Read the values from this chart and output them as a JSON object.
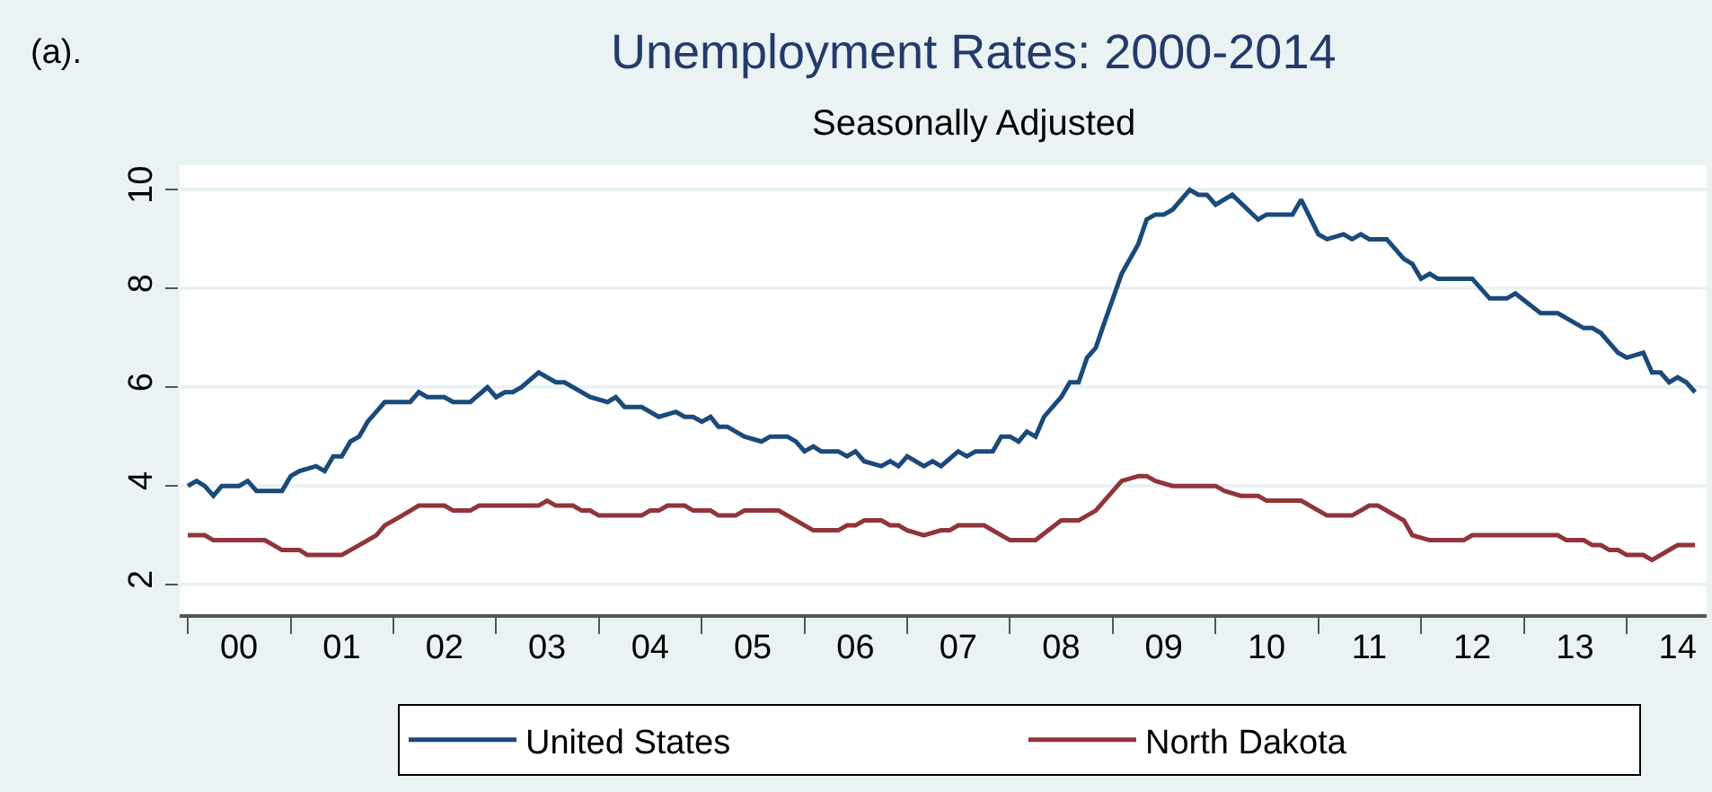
{
  "chart_data": {
    "type": "line",
    "title": "Unemployment Rates: 2000-2014",
    "subtitle": "Seasonally Adjusted",
    "annotations": [
      "(a)."
    ],
    "series": [
      {
        "name": "United States",
        "color": "#1a4a7a",
        "x": [
          "2000-01",
          "2000-02",
          "2000-03",
          "2000-04",
          "2000-05",
          "2000-07",
          "2000-08",
          "2000-09",
          "2000-12",
          "2001-01",
          "2001-02",
          "2001-04",
          "2001-05",
          "2001-06",
          "2001-07",
          "2001-08",
          "2001-09",
          "2001-10",
          "2001-12",
          "2002-03",
          "2002-04",
          "2002-05",
          "2002-07",
          "2002-08",
          "2002-10",
          "2002-12",
          "2003-01",
          "2003-02",
          "2003-03",
          "2003-04",
          "2003-06",
          "2003-08",
          "2003-09",
          "2003-12",
          "2004-02",
          "2004-03",
          "2004-04",
          "2004-06",
          "2004-08",
          "2004-10",
          "2004-11",
          "2004-12",
          "2005-01",
          "2005-02",
          "2005-03",
          "2005-04",
          "2005-06",
          "2005-08",
          "2005-09",
          "2005-11",
          "2005-12",
          "2006-01",
          "2006-02",
          "2006-03",
          "2006-05",
          "2006-06",
          "2006-07",
          "2006-08",
          "2006-10",
          "2006-11",
          "2006-12",
          "2007-01",
          "2007-03",
          "2007-04",
          "2007-05",
          "2007-07",
          "2007-08",
          "2007-09",
          "2007-11",
          "2007-12",
          "2008-01",
          "2008-02",
          "2008-03",
          "2008-04",
          "2008-05",
          "2008-07",
          "2008-08",
          "2008-09",
          "2008-10",
          "2008-11",
          "2008-12",
          "2009-02",
          "2009-04",
          "2009-05",
          "2009-06",
          "2009-07",
          "2009-08",
          "2009-10",
          "2009-11",
          "2009-12",
          "2010-01",
          "2010-03",
          "2010-06",
          "2010-07",
          "2010-10",
          "2010-11",
          "2011-01",
          "2011-02",
          "2011-04",
          "2011-05",
          "2011-06",
          "2011-07",
          "2011-09",
          "2011-11",
          "2011-12",
          "2012-01",
          "2012-02",
          "2012-03",
          "2012-07",
          "2012-09",
          "2012-11",
          "2012-12",
          "2013-03",
          "2013-05",
          "2013-08",
          "2013-09",
          "2013-10",
          "2013-12",
          "2014-01",
          "2014-03",
          "2014-04",
          "2014-05",
          "2014-06",
          "2014-07",
          "2014-08",
          "2014-09"
        ],
        "values": [
          4.0,
          4.1,
          4.0,
          3.8,
          4.0,
          4.0,
          4.1,
          3.9,
          3.9,
          4.2,
          4.3,
          4.4,
          4.3,
          4.6,
          4.6,
          4.9,
          5.0,
          5.3,
          5.7,
          5.7,
          5.9,
          5.8,
          5.8,
          5.7,
          5.7,
          6.0,
          5.8,
          5.9,
          5.9,
          6.0,
          6.3,
          6.1,
          6.1,
          5.8,
          5.7,
          5.8,
          5.6,
          5.6,
          5.4,
          5.5,
          5.4,
          5.4,
          5.3,
          5.4,
          5.2,
          5.2,
          5.0,
          4.9,
          5.0,
          5.0,
          4.9,
          4.7,
          4.8,
          4.7,
          4.7,
          4.6,
          4.7,
          4.5,
          4.4,
          4.5,
          4.4,
          4.6,
          4.4,
          4.5,
          4.4,
          4.7,
          4.6,
          4.7,
          4.7,
          5.0,
          5.0,
          4.9,
          5.1,
          5.0,
          5.4,
          5.8,
          6.1,
          6.1,
          6.6,
          6.8,
          7.3,
          8.3,
          8.9,
          9.4,
          9.5,
          9.5,
          9.6,
          10.0,
          9.9,
          9.9,
          9.7,
          9.9,
          9.4,
          9.5,
          9.5,
          9.8,
          9.1,
          9.0,
          9.1,
          9.0,
          9.1,
          9.0,
          9.0,
          8.6,
          8.5,
          8.2,
          8.3,
          8.2,
          8.2,
          7.8,
          7.8,
          7.9,
          7.5,
          7.5,
          7.2,
          7.2,
          7.1,
          6.7,
          6.6,
          6.7,
          6.3,
          6.3,
          6.1,
          6.2,
          6.1,
          5.9
        ]
      },
      {
        "name": "North Dakota",
        "color": "#90353b",
        "x": [
          "2000-01",
          "2000-03",
          "2000-04",
          "2000-10",
          "2000-12",
          "2001-02",
          "2001-03",
          "2001-07",
          "2001-09",
          "2001-11",
          "2001-12",
          "2002-02",
          "2002-04",
          "2002-07",
          "2002-08",
          "2002-10",
          "2002-11",
          "2003-06",
          "2003-07",
          "2003-08",
          "2003-10",
          "2003-11",
          "2003-12",
          "2004-01",
          "2004-06",
          "2004-07",
          "2004-08",
          "2004-09",
          "2004-11",
          "2004-12",
          "2005-02",
          "2005-03",
          "2005-05",
          "2005-06",
          "2005-10",
          "2006-02",
          "2006-05",
          "2006-06",
          "2006-07",
          "2006-08",
          "2006-10",
          "2006-11",
          "2006-12",
          "2007-01",
          "2007-03",
          "2007-05",
          "2007-06",
          "2007-07",
          "2007-10",
          "2008-01",
          "2008-04",
          "2008-07",
          "2008-09",
          "2008-11",
          "2009-02",
          "2009-04",
          "2009-05",
          "2009-06",
          "2009-08",
          "2010-01",
          "2010-02",
          "2010-04",
          "2010-06",
          "2010-07",
          "2010-11",
          "2011-02",
          "2011-05",
          "2011-07",
          "2011-08",
          "2011-11",
          "2011-12",
          "2012-02",
          "2012-06",
          "2012-07",
          "2013-05",
          "2013-06",
          "2013-08",
          "2013-09",
          "2013-10",
          "2013-11",
          "2013-12",
          "2014-01",
          "2014-03",
          "2014-04",
          "2014-07",
          "2014-09"
        ],
        "values": [
          3.0,
          3.0,
          2.9,
          2.9,
          2.7,
          2.7,
          2.6,
          2.6,
          2.8,
          3.0,
          3.2,
          3.4,
          3.6,
          3.6,
          3.5,
          3.5,
          3.6,
          3.6,
          3.7,
          3.6,
          3.6,
          3.5,
          3.5,
          3.4,
          3.4,
          3.5,
          3.5,
          3.6,
          3.6,
          3.5,
          3.5,
          3.4,
          3.4,
          3.5,
          3.5,
          3.1,
          3.1,
          3.2,
          3.2,
          3.3,
          3.3,
          3.2,
          3.2,
          3.1,
          3.0,
          3.1,
          3.1,
          3.2,
          3.2,
          2.9,
          2.9,
          3.3,
          3.3,
          3.5,
          4.1,
          4.2,
          4.2,
          4.1,
          4.0,
          4.0,
          3.9,
          3.8,
          3.8,
          3.7,
          3.7,
          3.4,
          3.4,
          3.6,
          3.6,
          3.3,
          3.0,
          2.9,
          2.9,
          3.0,
          3.0,
          2.9,
          2.9,
          2.8,
          2.8,
          2.7,
          2.7,
          2.6,
          2.6,
          2.5,
          2.8,
          2.8
        ]
      }
    ],
    "xlim": [
      "1999-12-03",
      "2014-10-12"
    ],
    "xticks": [
      {
        "value": "2000-01-01",
        "label": null
      },
      {
        "value": "2001-01-01",
        "label": null
      },
      {
        "value": "2002-01-01",
        "label": null
      },
      {
        "value": "2003-01-01",
        "label": null
      },
      {
        "value": "2004-01-01",
        "label": null
      },
      {
        "value": "2005-01-01",
        "label": null
      },
      {
        "value": "2006-01-01",
        "label": null
      },
      {
        "value": "2007-01-01",
        "label": null
      },
      {
        "value": "2008-01-01",
        "label": null
      },
      {
        "value": "2009-01-01",
        "label": null
      },
      {
        "value": "2010-01-01",
        "label": null
      },
      {
        "value": "2011-01-01",
        "label": null
      },
      {
        "value": "2012-01-01",
        "label": null
      },
      {
        "value": "2013-01-01",
        "label": null
      },
      {
        "value": "2014-01-01",
        "label": null
      },
      {
        "value": "2000-07-01",
        "label": "00"
      },
      {
        "value": "2001-07-01",
        "label": "01"
      },
      {
        "value": "2002-07-01",
        "label": "02"
      },
      {
        "value": "2003-07-01",
        "label": "03"
      },
      {
        "value": "2004-07-01",
        "label": "04"
      },
      {
        "value": "2005-07-01",
        "label": "05"
      },
      {
        "value": "2006-07-01",
        "label": "06"
      },
      {
        "value": "2007-07-01",
        "label": "07"
      },
      {
        "value": "2008-07-01",
        "label": "08"
      },
      {
        "value": "2009-07-01",
        "label": "09"
      },
      {
        "value": "2010-07-01",
        "label": "10"
      },
      {
        "value": "2011-07-01",
        "label": "11"
      },
      {
        "value": "2012-07-01",
        "label": "12"
      },
      {
        "value": "2013-07-01",
        "label": "13"
      },
      {
        "value": "2014-07-01",
        "label": "14"
      }
    ],
    "ylim": [
      1.4,
      10.5
    ],
    "yticks": [
      2,
      4,
      6,
      8,
      10
    ],
    "grid": "y",
    "legend": "bottom",
    "marker": "none",
    "line_style": "solid"
  }
}
